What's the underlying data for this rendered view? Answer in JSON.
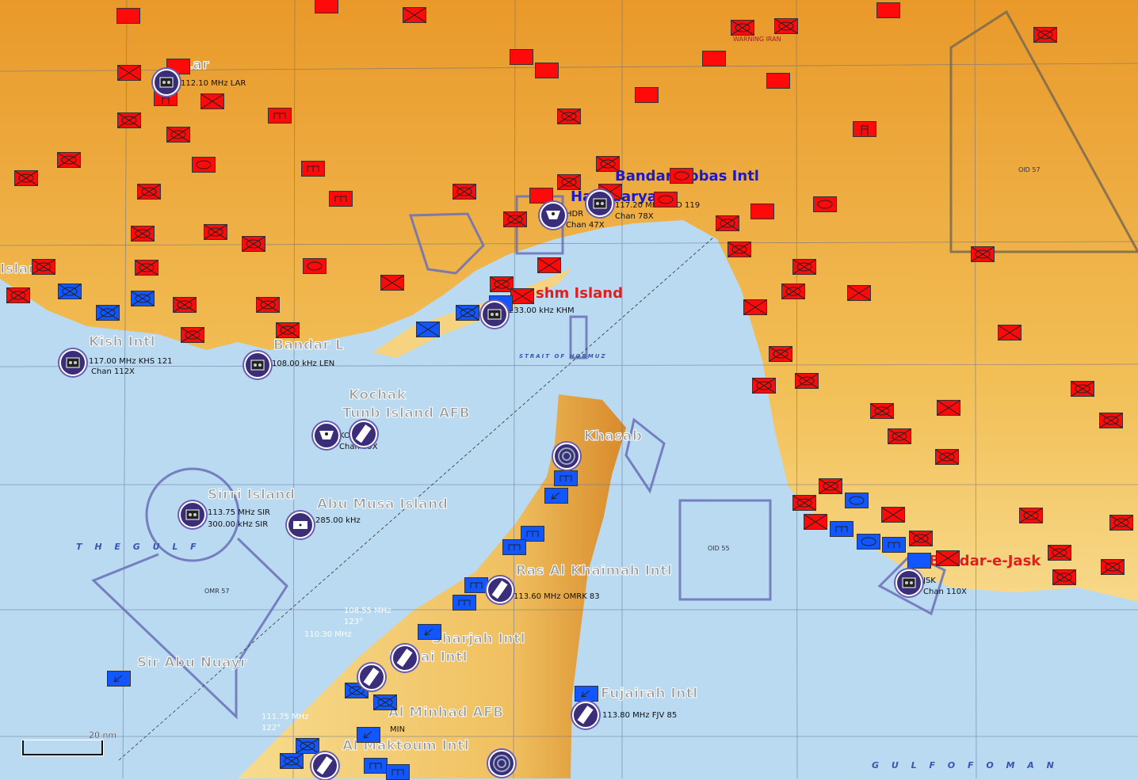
{
  "colors": {
    "sea": "#b9daf0",
    "land_coast": "#f7d98a",
    "land_inland": "#eb9f2c",
    "hostile": "#ff0a0a",
    "friendly": "#1256ff",
    "navaid": "#3a2d7a",
    "airspace": "#6a70b8"
  },
  "labels": {
    "lar": "Lar",
    "kish": "Kish Intl",
    "bandar_lengeh": "Bandar L",
    "islands": "Islar",
    "qeshm": "shm Island",
    "bandar_abbas": "Bandar Abbas Intl",
    "havadarya": "Havadarya",
    "tunb": "Tunb Island AFB",
    "kochak": "Kochak",
    "khasab": "Khasab",
    "sirri": "Sirri Island",
    "abu_musa": "Abu Musa Island",
    "rak": "Ras Al Khaimah Intl",
    "sharjah": "Sharjah Intl",
    "dubai": "Dubai Intl",
    "fujairah": "Fujairah Intl",
    "minhad": "Al Minhad AFB",
    "maktoum": "Al Maktoum Intl",
    "abu_nuayr": "Sir Abu Nuayr",
    "jask": "Bandar-e-Jask"
  },
  "freqs": {
    "lar": "112.10 MHz LAR",
    "kish1": "117.00 MHz KHS 121",
    "kish2": "Chan 112X",
    "lengeh": "108.00 kHz LEN",
    "qeshm": "233.00 kHz KHM",
    "hdr1": "HDR",
    "hdr2": "Chan 47X",
    "bnd1": "117.20 MHz BND 119",
    "bnd2": "Chan 78X",
    "kok1": "KOK",
    "kok2": "Chan 89X",
    "sir1": "113.75 MHz SIR",
    "sir2": "300.00 kHz SIR",
    "abumusa": "285.00 kHz",
    "rak": "113.60 MHz OMRK 83",
    "fjv": "113.80 MHz FJV 85",
    "jsk1": "JSK",
    "jsk2": "Chan 110X",
    "w1": "108.55 MHz",
    "w2": "123°",
    "w3": "110.30 MHz",
    "w4": "111.75 MHz",
    "w5": "122°",
    "min": "MIN"
  },
  "chart_text": {
    "the_gulf": "T H E   G U L F",
    "gulf_oman": "G U L F   O F   O M A N",
    "strait": "STRAIT OF HORMUZ",
    "omr57": "OMR 57",
    "oid55": "OID 55",
    "oid57": "OID 57",
    "warning": "WARNING IRAN"
  },
  "scale": {
    "label": "20 nm"
  },
  "units": {
    "hostile": [
      "plain",
      "plain",
      "x",
      "plain",
      "mech",
      "mech",
      "mech",
      "plain",
      "plain",
      "plain",
      "plain",
      "plain",
      "mech",
      "hq",
      "engineer",
      "x",
      "x",
      "plain",
      "hq",
      "mech",
      "mech",
      "mech",
      "mech",
      "armor",
      "engineer",
      "mech",
      "engineer",
      "mech",
      "mech",
      "mech",
      "armor",
      "mech",
      "mech",
      "mech",
      "mech",
      "mech",
      "mech",
      "mech",
      "x",
      "mech",
      "armor",
      "mech",
      "mech",
      "plain",
      "x",
      "armor",
      "mech",
      "x",
      "mech",
      "x",
      "mech",
      "plain",
      "mech",
      "x",
      "armor",
      "mech",
      "mech",
      "x",
      "mech",
      "mech",
      "mech",
      "mech",
      "x",
      "mech",
      "mech",
      "mech",
      "x",
      "mech",
      "mech",
      "mech",
      "mech",
      "x",
      "x",
      "mech",
      "x",
      "mech",
      "mech",
      "mech",
      "mech",
      "mech"
    ],
    "friendly": [
      "mech",
      "mech",
      "mech",
      "plain",
      "mech",
      "x",
      "armor",
      "engineer",
      "armor",
      "engineer",
      "plain",
      "engineer",
      "aviation",
      "engineer",
      "engineer",
      "engineer",
      "engineer",
      "aviation",
      "mech",
      "mech",
      "aviation",
      "mech",
      "mech",
      "engineer",
      "engineer",
      "aviation",
      "aviation"
    ]
  },
  "navaids": [
    "vordme",
    "vordme",
    "vordme",
    "vordme",
    "tacan",
    "vordme",
    "tacan",
    "slash",
    "vordme",
    "ndb",
    "concentric",
    "slash",
    "slash",
    "slash",
    "slash",
    "slash",
    "concentric",
    "vordme"
  ]
}
